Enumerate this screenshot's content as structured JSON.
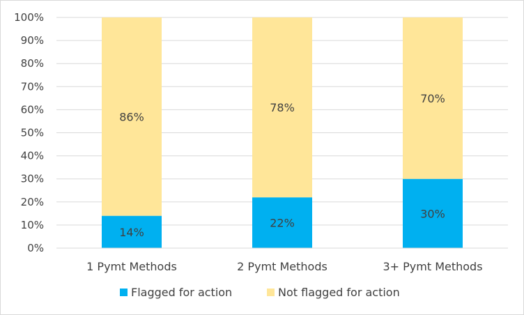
{
  "chart_data": {
    "type": "bar",
    "stacked": true,
    "percent": true,
    "categories": [
      "1 Pymt Methods",
      "2 Pymt Methods",
      "3+ Pymt Methods"
    ],
    "series": [
      {
        "name": "Flagged for action",
        "values": [
          14,
          22,
          30
        ],
        "color": "#00b0f0",
        "labels": [
          "14%",
          "22%",
          "30%"
        ]
      },
      {
        "name": "Not flagged for action",
        "values": [
          86,
          78,
          70
        ],
        "color": "#ffe699",
        "labels": [
          "86%",
          "78%",
          "70%"
        ]
      }
    ],
    "ylim": [
      0,
      100
    ],
    "yticks": [
      "0%",
      "10%",
      "20%",
      "30%",
      "40%",
      "50%",
      "60%",
      "70%",
      "80%",
      "90%",
      "100%"
    ],
    "grid": true,
    "legend": "bottom",
    "title": "",
    "xlabel": "",
    "ylabel": ""
  }
}
